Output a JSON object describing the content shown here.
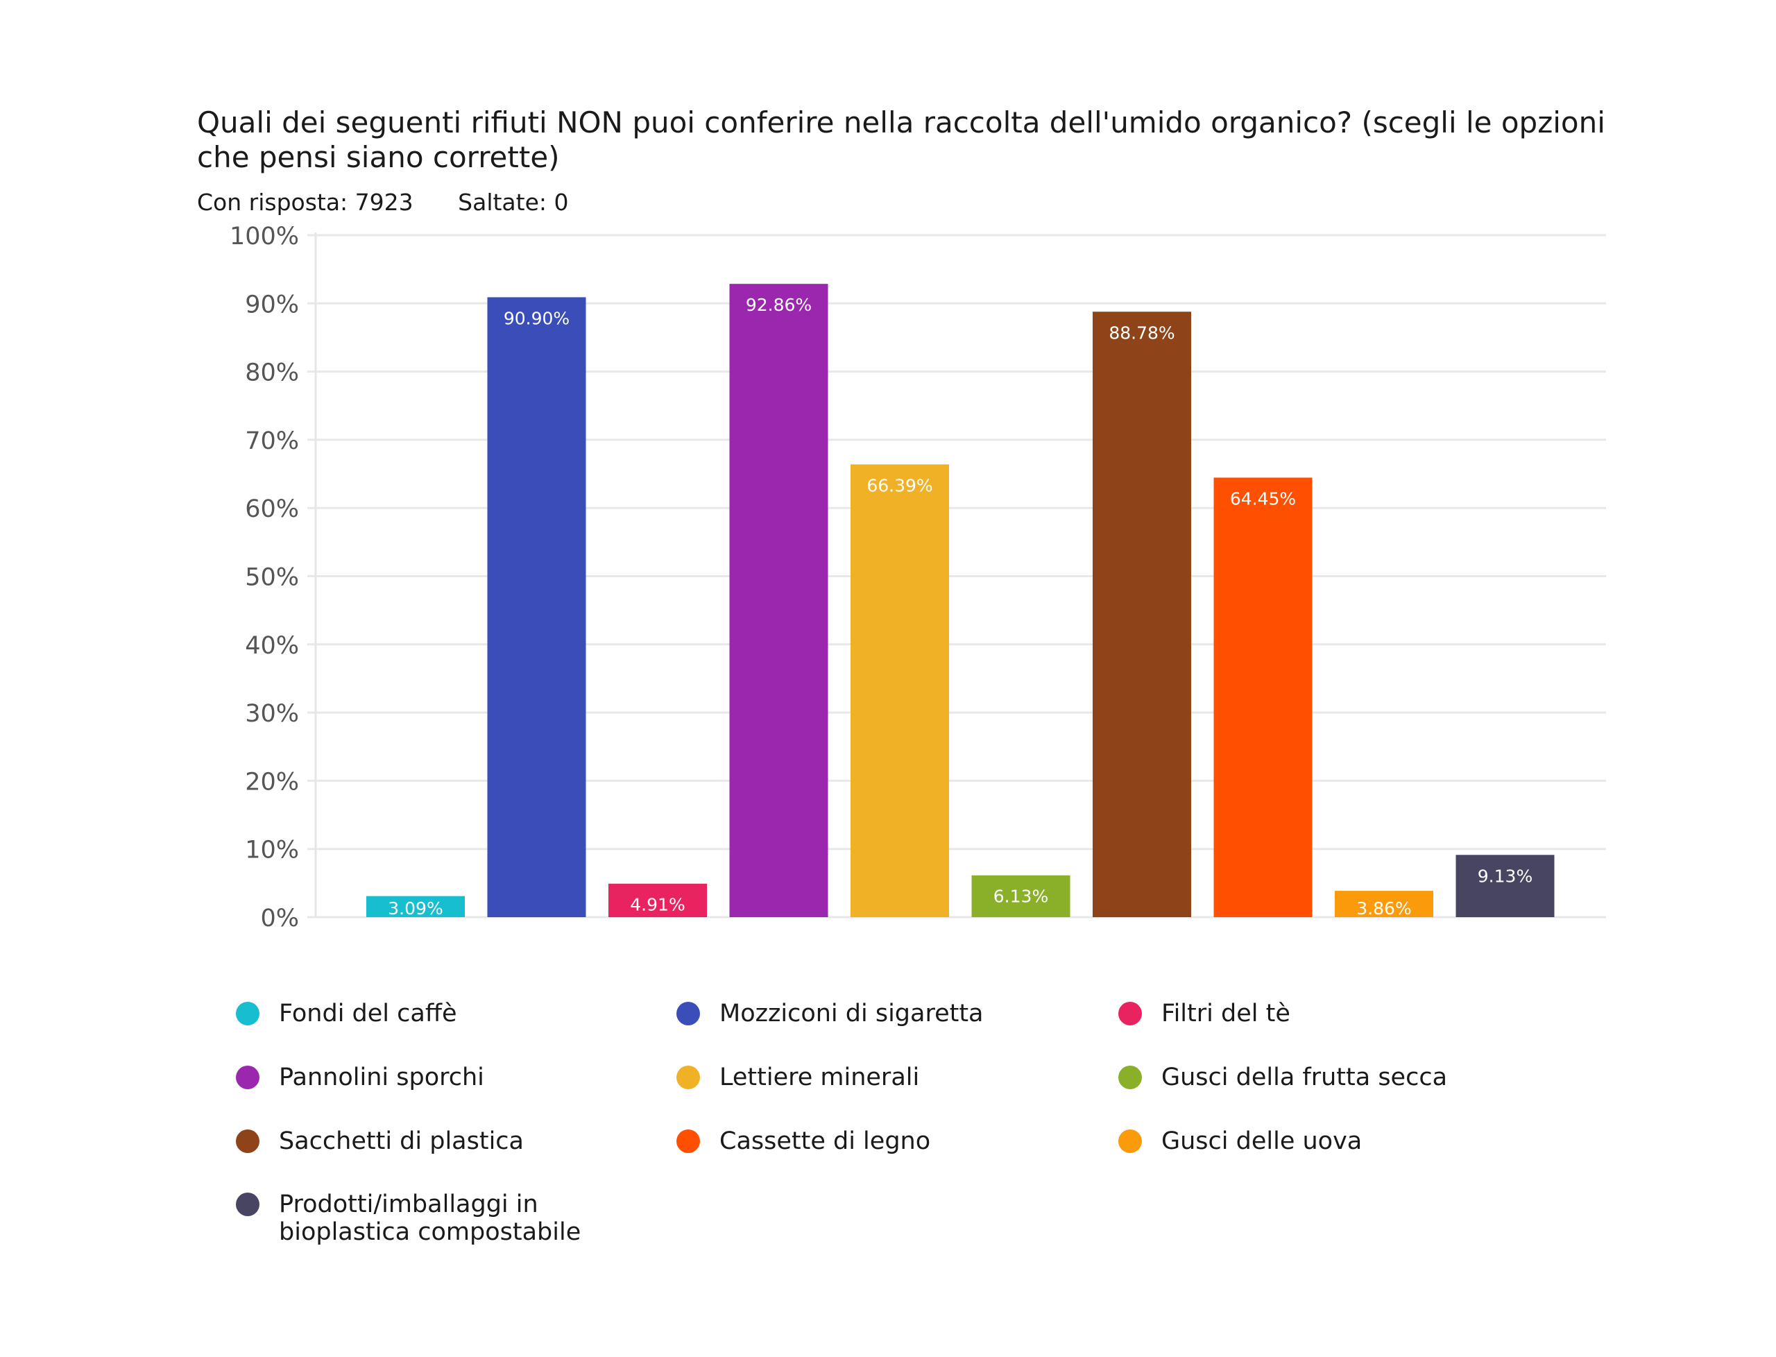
{
  "chart_data": {
    "type": "bar",
    "title": "Quali dei seguenti rifiuti NON puoi conferire nella raccolta dell'umido organico? (scegli le opzioni che pensi siano corrette)",
    "answered_label": "Con risposta: 7923",
    "skipped_label": "Saltate: 0",
    "xlabel": "",
    "ylabel": "",
    "ylim": [
      0,
      100
    ],
    "yticks": [
      0,
      10,
      20,
      30,
      40,
      50,
      60,
      70,
      80,
      90,
      100
    ],
    "ytick_labels": [
      "0%",
      "10%",
      "20%",
      "30%",
      "40%",
      "50%",
      "60%",
      "70%",
      "80%",
      "90%",
      "100%"
    ],
    "grid": true,
    "legend_position": "bottom",
    "categories": [
      "Fondi del caffè",
      "Mozziconi di sigaretta",
      "Filtri del tè",
      "Pannolini sporchi",
      "Lettiere minerali",
      "Gusci della frutta secca",
      "Sacchetti di plastica",
      "Cassette di legno",
      "Gusci delle uova",
      "Prodotti/imballaggi in bioplastica compostabile"
    ],
    "values": [
      3.09,
      90.9,
      4.91,
      92.86,
      66.39,
      6.13,
      88.78,
      64.45,
      3.86,
      9.13
    ],
    "data_labels": [
      "3.09%",
      "90.90%",
      "4.91%",
      "92.86%",
      "66.39%",
      "6.13%",
      "88.78%",
      "64.45%",
      "3.86%",
      "9.13%"
    ],
    "colors": [
      "#17BECF",
      "#3A4DB8",
      "#E8235F",
      "#9B27AF",
      "#F0B127",
      "#8AB02A",
      "#8E4318",
      "#FE5000",
      "#FB9A0A",
      "#474562"
    ],
    "legend_lines": [
      [
        "Fondi del caffè"
      ],
      [
        "Mozziconi di sigaretta"
      ],
      [
        "Filtri del tè"
      ],
      [
        "Pannolini sporchi"
      ],
      [
        "Lettiere minerali"
      ],
      [
        "Gusci della frutta secca"
      ],
      [
        "Sacchetti di plastica"
      ],
      [
        "Cassette di legno"
      ],
      [
        "Gusci delle uova"
      ],
      [
        "Prodotti/imballaggi in",
        "bioplastica compostabile"
      ]
    ]
  }
}
